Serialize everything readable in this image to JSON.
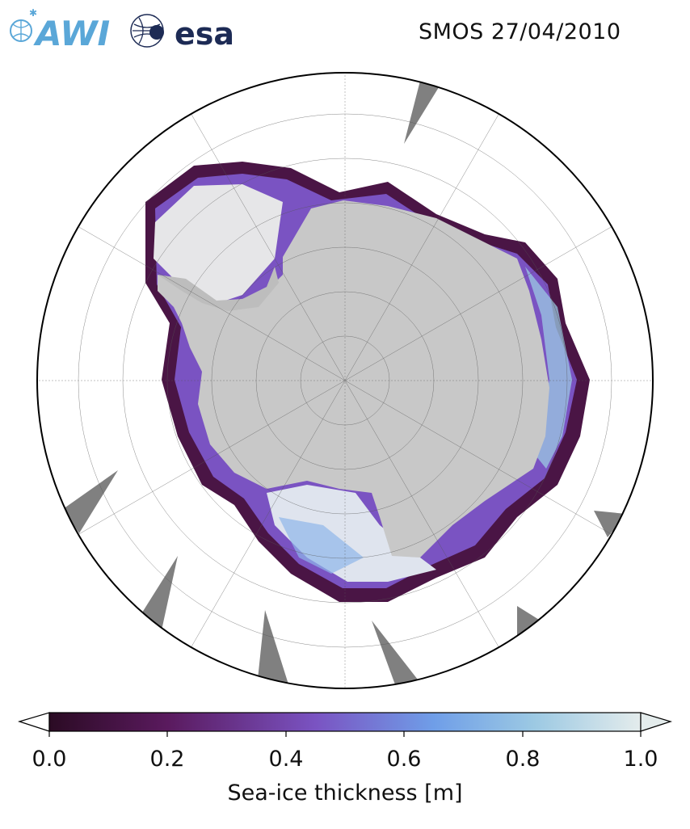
{
  "header": {
    "logo_awi_text": "AWI",
    "logo_esa_text": "esa",
    "title": "SMOS 27/04/2010"
  },
  "map": {
    "projection": "south-polar-stereographic",
    "background_color": "#ffffff",
    "land_color": "#c8c8c8",
    "missing_data_color": "#808080",
    "open_water_color": "#ffffff",
    "graticule": true
  },
  "colorbar": {
    "label": "Sea-ice thickness [m]",
    "colormap": "dense-purple-to-white",
    "vmin": 0.0,
    "vmax": 1.0,
    "extend": "both",
    "ticks": [
      "0.0",
      "0.2",
      "0.4",
      "0.6",
      "0.8",
      "1.0"
    ],
    "stops": [
      "#2b0b24",
      "#5a1a5e",
      "#7a53c2",
      "#6f9ee8",
      "#9cc9e3",
      "#e4ecec"
    ]
  }
}
